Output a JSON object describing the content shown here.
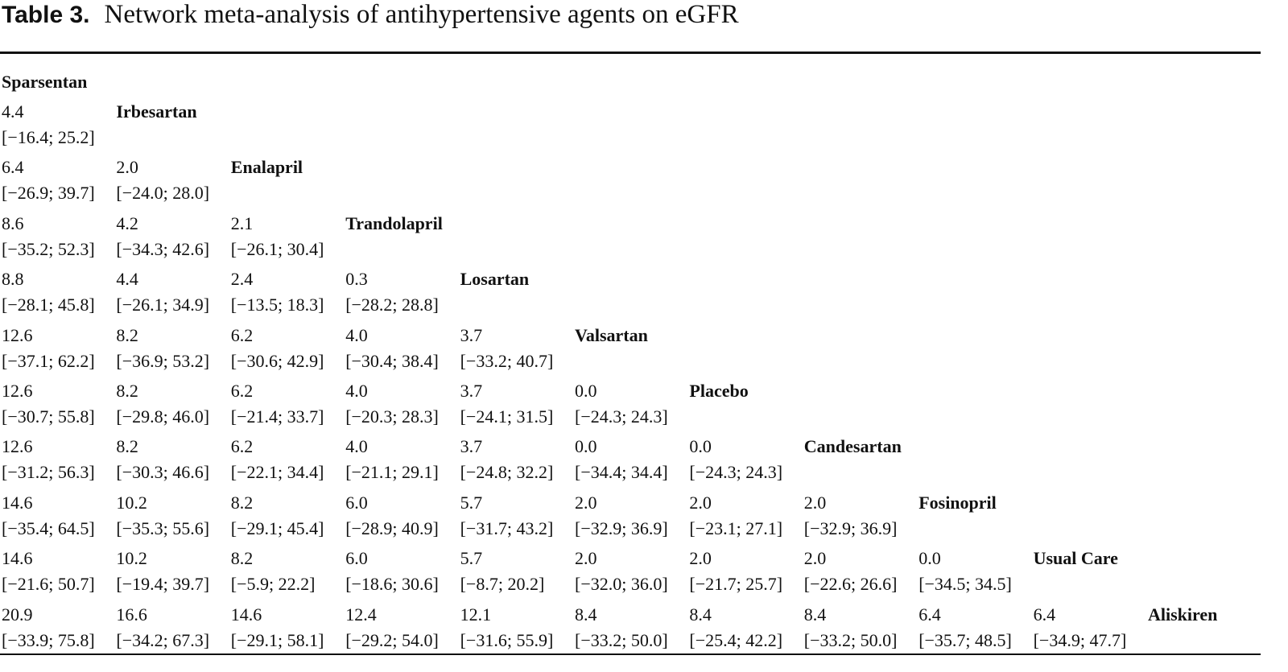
{
  "header": {
    "label": "Table 3.",
    "title": "Network meta-analysis of antihypertensive agents on eGFR"
  },
  "table": {
    "rows": [
      {
        "drug": "Sparsentan",
        "cells": []
      },
      {
        "drug": "Irbesartan",
        "cells": [
          [
            "4.4",
            "[−16.4; 25.2]"
          ]
        ]
      },
      {
        "drug": "Enalapril",
        "cells": [
          [
            "6.4",
            "[−26.9; 39.7]"
          ],
          [
            "2.0",
            "[−24.0; 28.0]"
          ]
        ]
      },
      {
        "drug": "Trandolapril",
        "cells": [
          [
            "8.6",
            "[−35.2; 52.3]"
          ],
          [
            "4.2",
            "[−34.3; 42.6]"
          ],
          [
            "2.1",
            "[−26.1; 30.4]"
          ]
        ]
      },
      {
        "drug": "Losartan",
        "cells": [
          [
            "8.8",
            "[−28.1; 45.8]"
          ],
          [
            "4.4",
            "[−26.1; 34.9]"
          ],
          [
            "2.4",
            "[−13.5; 18.3]"
          ],
          [
            "0.3",
            "[−28.2; 28.8]"
          ]
        ]
      },
      {
        "drug": "Valsartan",
        "cells": [
          [
            "12.6",
            "[−37.1; 62.2]"
          ],
          [
            "8.2",
            "[−36.9; 53.2]"
          ],
          [
            "6.2",
            "[−30.6; 42.9]"
          ],
          [
            "4.0",
            "[−30.4; 38.4]"
          ],
          [
            "3.7",
            "[−33.2; 40.7]"
          ]
        ]
      },
      {
        "drug": "Placebo",
        "cells": [
          [
            "12.6",
            "[−30.7; 55.8]"
          ],
          [
            "8.2",
            "[−29.8; 46.0]"
          ],
          [
            "6.2",
            "[−21.4; 33.7]"
          ],
          [
            "4.0",
            "[−20.3; 28.3]"
          ],
          [
            "3.7",
            "[−24.1; 31.5]"
          ],
          [
            "0.0",
            "[−24.3; 24.3]"
          ]
        ]
      },
      {
        "drug": "Candesartan",
        "cells": [
          [
            "12.6",
            "[−31.2; 56.3]"
          ],
          [
            "8.2",
            "[−30.3; 46.6]"
          ],
          [
            "6.2",
            "[−22.1; 34.4]"
          ],
          [
            "4.0",
            "[−21.1; 29.1]"
          ],
          [
            "3.7",
            "[−24.8; 32.2]"
          ],
          [
            "0.0",
            "[−34.4; 34.4]"
          ],
          [
            "0.0",
            "[−24.3; 24.3]"
          ]
        ]
      },
      {
        "drug": "Fosinopril",
        "cells": [
          [
            "14.6",
            "[−35.4; 64.5]"
          ],
          [
            "10.2",
            "[−35.3; 55.6]"
          ],
          [
            "8.2",
            "[−29.1; 45.4]"
          ],
          [
            "6.0",
            "[−28.9; 40.9]"
          ],
          [
            "5.7",
            "[−31.7; 43.2]"
          ],
          [
            "2.0",
            "[−32.9; 36.9]"
          ],
          [
            "2.0",
            "[−23.1; 27.1]"
          ],
          [
            "2.0",
            "[−32.9; 36.9]"
          ]
        ]
      },
      {
        "drug": "Usual Care",
        "cells": [
          [
            "14.6",
            "[−21.6; 50.7]"
          ],
          [
            "10.2",
            "[−19.4; 39.7]"
          ],
          [
            "8.2",
            "[−5.9; 22.2]"
          ],
          [
            "6.0",
            "[−18.6; 30.6]"
          ],
          [
            "5.7",
            "[−8.7; 20.2]"
          ],
          [
            "2.0",
            "[−32.0; 36.0]"
          ],
          [
            "2.0",
            "[−21.7; 25.7]"
          ],
          [
            "2.0",
            "[−22.6; 26.6]"
          ],
          [
            "0.0",
            "[−34.5; 34.5]"
          ]
        ]
      },
      {
        "drug": "Aliskiren",
        "cells": [
          [
            "20.9",
            "[−33.9; 75.8]"
          ],
          [
            "16.6",
            "[−34.2; 67.3]"
          ],
          [
            "14.6",
            "[−29.1; 58.1]"
          ],
          [
            "12.4",
            "[−29.2; 54.0]"
          ],
          [
            "12.1",
            "[−31.6; 55.9]"
          ],
          [
            "8.4",
            "[−33.2; 50.0]"
          ],
          [
            "8.4",
            "[−25.4; 42.2]"
          ],
          [
            "8.4",
            "[−33.2; 50.0]"
          ],
          [
            "6.4",
            "[−35.7; 48.5]"
          ],
          [
            "6.4",
            "[−34.9; 47.7]"
          ]
        ]
      }
    ]
  }
}
